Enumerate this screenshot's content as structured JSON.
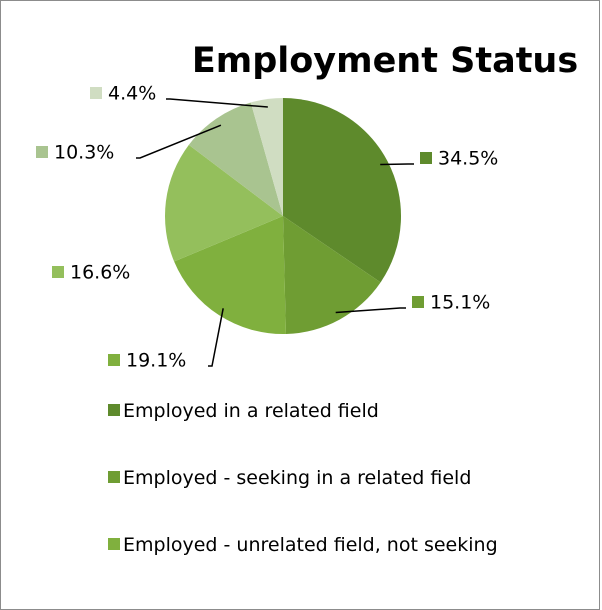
{
  "chart_data": {
    "type": "pie",
    "title": "Employment Status",
    "categories": [
      "Employed in a related field",
      "Employed - seeking in a related field",
      "Employed - unrelated field, not seeking",
      null,
      null,
      null
    ],
    "values": [
      34.5,
      15.1,
      19.1,
      16.6,
      10.3,
      4.4
    ],
    "value_labels": [
      "34.5%",
      "15.1%",
      "19.1%",
      "16.6%",
      "10.3%",
      "4.4%"
    ],
    "colors": [
      "#5e8a2c",
      "#6f9d33",
      "#80b03e",
      "#94bf5c",
      "#a9c490",
      "#d0ddc2"
    ]
  }
}
